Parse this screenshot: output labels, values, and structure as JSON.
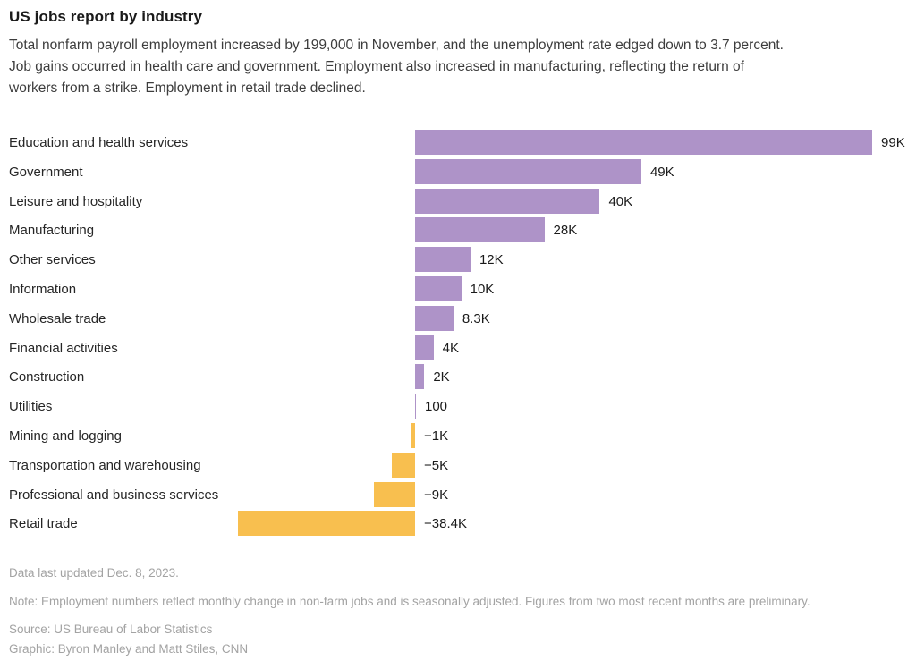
{
  "header": {
    "title": "US jobs report by industry",
    "subtitle_lines": [
      "Total nonfarm payroll employment increased by 199,000 in November, and the unemployment rate edged down to 3.7 percent.",
      "Job gains occurred in health care and government. Employment also increased in manufacturing, reflecting the return of",
      "workers from a strike. Employment in retail trade declined."
    ]
  },
  "chart_data": {
    "type": "bar",
    "orientation": "horizontal",
    "categories": [
      "Education and health services",
      "Government",
      "Leisure and hospitality",
      "Manufacturing",
      "Other services",
      "Information",
      "Wholesale trade",
      "Financial activities",
      "Construction",
      "Utilities",
      "Mining and logging",
      "Transportation and warehousing",
      "Professional and business services",
      "Retail trade"
    ],
    "values": [
      99,
      49,
      40,
      28,
      12,
      10,
      8.3,
      4,
      2,
      0.1,
      -1,
      -5,
      -9,
      -38.4
    ],
    "value_labels": [
      "99K",
      "49K",
      "40K",
      "28K",
      "12K",
      "10K",
      "8.3K",
      "4K",
      "2K",
      "100",
      "−1K",
      "−5K",
      "−9K",
      "−38.4K"
    ],
    "xlim": [
      -40,
      100
    ],
    "grid": false,
    "legend": "none",
    "positive_color": "#ae93c8",
    "negative_color": "#f8bf4f"
  },
  "footer": {
    "updated": "Data last updated Dec. 8, 2023.",
    "note": "Note: Employment numbers reflect monthly change in non-farm jobs and is seasonally adjusted. Figures from two most recent months are preliminary.",
    "source": "Source: US Bureau of Labor Statistics",
    "credit": "Graphic: Byron Manley and Matt Stiles, CNN"
  }
}
